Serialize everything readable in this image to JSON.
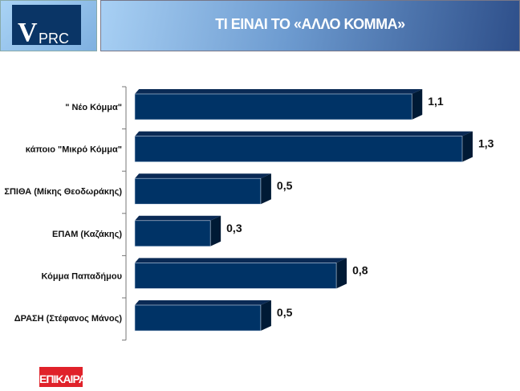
{
  "header": {
    "logo": "VPRC",
    "title": "ΤΙ ΕΙΝΑΙ ΤΟ «ΑΛΛΟ ΚΟΜΜΑ»"
  },
  "footer": {
    "logo": "ΕΠΙΚΑΙΡΑ"
  },
  "chart_data": {
    "type": "bar",
    "orientation": "horizontal",
    "title": "ΤΙ ΕΙΝΑΙ ΤΟ «ΑΛΛΟ ΚΟΜΜΑ»",
    "categories": [
      "\" Νέο Κόμμα\"",
      "κάποιο \"Μικρό Κόμμα\"",
      "ΣΠΙΘΑ (Μίκης Θεοδωράκης)",
      "ΕΠΑΜ (Καζάκης)",
      "Κόμμα Παπαδήμου",
      "ΔΡΑΣΗ (Στέφανος Μάνος)"
    ],
    "values": [
      1.1,
      1.3,
      0.5,
      0.3,
      0.8,
      0.5
    ],
    "data_labels": [
      "1,1",
      "1,3",
      "0,5",
      "0,3",
      "0,8",
      "0,5"
    ],
    "bar_color": "#003366",
    "grid": false,
    "xlim": [
      0,
      1.3
    ]
  }
}
